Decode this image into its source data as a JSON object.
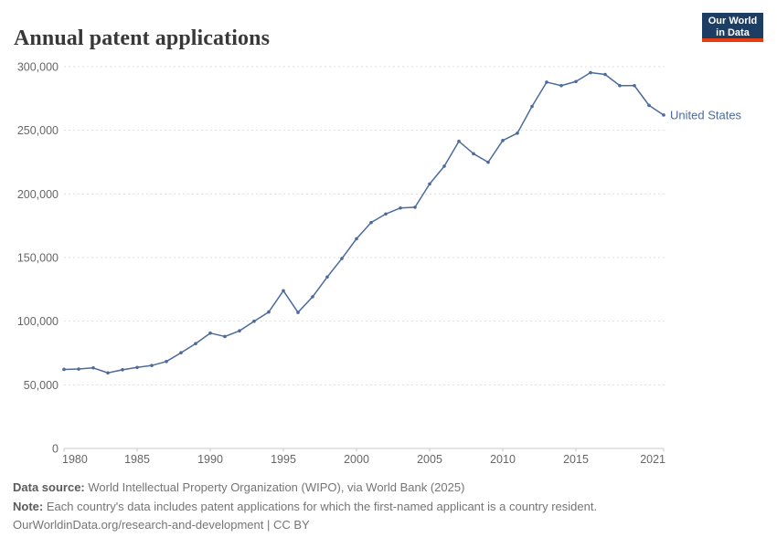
{
  "header": {
    "title": "Annual patent applications",
    "logo": {
      "line1": "Our World",
      "line2": "in Data",
      "bg": "#1d3d63",
      "accent": "#e63e13"
    }
  },
  "chart_data": {
    "type": "line",
    "title": "Annual patent applications",
    "x": [
      1980,
      1981,
      1982,
      1983,
      1984,
      1985,
      1986,
      1987,
      1988,
      1989,
      1990,
      1991,
      1992,
      1993,
      1994,
      1995,
      1996,
      1997,
      1998,
      1999,
      2000,
      2001,
      2002,
      2003,
      2004,
      2005,
      2006,
      2007,
      2008,
      2009,
      2010,
      2011,
      2012,
      2013,
      2014,
      2015,
      2016,
      2017,
      2018,
      2019,
      2020,
      2021
    ],
    "series": [
      {
        "name": "United States",
        "color": "#4c6a9c",
        "values": [
          62098,
          62404,
          63316,
          59391,
          61841,
          63673,
          65195,
          68315,
          75192,
          82370,
          90643,
          87955,
          92425,
          99955,
          107233,
          123962,
          106892,
          119214,
          134733,
          149251,
          164795,
          177513,
          184245,
          188941,
          189536,
          207867,
          221784,
          241347,
          231588,
          224912,
          241977,
          247750,
          268782,
          287831,
          285096,
          288335,
          295327,
          293904,
          285095,
          285113,
          269586,
          262000
        ]
      }
    ],
    "xticks": [
      1980,
      1985,
      1990,
      1995,
      2000,
      2005,
      2010,
      2015,
      2021
    ],
    "ytick_labels": [
      "0",
      "50,000",
      "100,000",
      "150,000",
      "200,000",
      "250,000",
      "300,000"
    ],
    "yticks": [
      0,
      50000,
      100000,
      150000,
      200000,
      250000,
      300000
    ],
    "xlim": [
      1980,
      2021
    ],
    "ylim": [
      0,
      300000
    ],
    "xlabel": "",
    "ylabel": "",
    "grid": "horizontal-dashed",
    "legend": "line-end-label"
  },
  "colors": {
    "line": "#4c6a9c",
    "grid": "#dedede",
    "axis": "#c8c8c8",
    "tick_text": "#666666",
    "title_text": "#383838",
    "footer_text": "#757575"
  },
  "footer": {
    "source_label": "Data source:",
    "source_text": " World Intellectual Property Organization (WIPO), via World Bank (2025)",
    "note_label": "Note:",
    "note_text": " Each country's data includes patent applications for which the first-named applicant is a country resident.",
    "cc_line": "OurWorldinData.org/research-and-development | CC BY"
  }
}
